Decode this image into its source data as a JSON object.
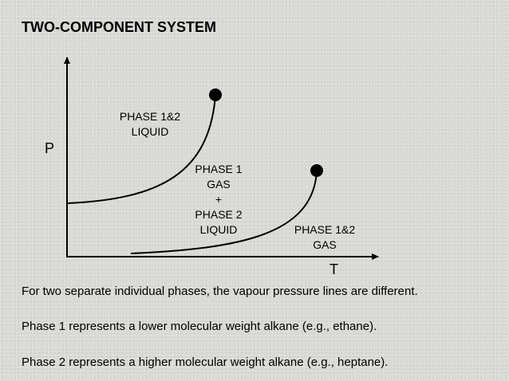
{
  "slide": {
    "title": "TWO-COMPONENT SYSTEM"
  },
  "diagram": {
    "axes": {
      "y_label": "P",
      "x_label": "T"
    },
    "regions": {
      "liquid_both": [
        "PHASE 1&2",
        "LIQUID"
      ],
      "mixed": [
        "PHASE 1",
        "GAS",
        "+",
        "PHASE 2",
        "LIQUID"
      ],
      "gas_both": [
        "PHASE 1&2",
        "GAS"
      ]
    },
    "curves": [
      {
        "name": "phase-1-vapour-pressure-line",
        "endpoint": "critical-point"
      },
      {
        "name": "phase-2-vapour-pressure-line",
        "endpoint": "critical-point"
      }
    ],
    "colors": {
      "line": "#000000",
      "point": "#000000"
    }
  },
  "text": {
    "line1": "For two separate individual phases, the vapour pressure lines are different.",
    "line2": "Phase 1 represents a lower molecular weight alkane (e.g., ethane).",
    "line3": "Phase 2 represents a higher molecular weight alkane (e.g., heptane)."
  }
}
